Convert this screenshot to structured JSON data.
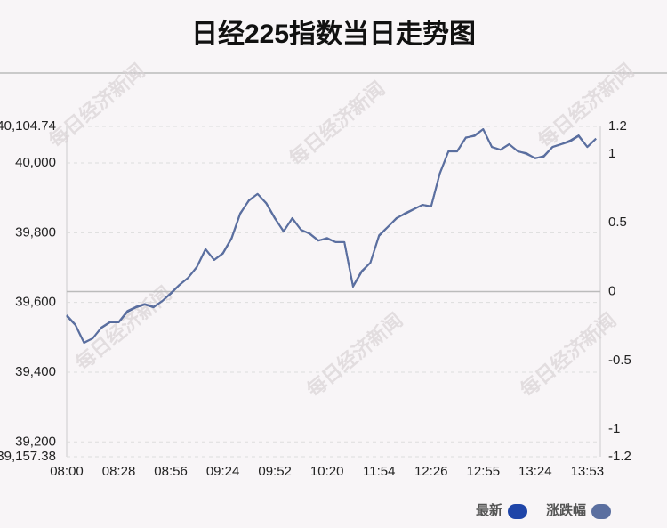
{
  "chart_data": {
    "type": "line",
    "title": "日经225指数当日走势图",
    "watermark": "每日经济新闻",
    "categories": [
      "08:00",
      null,
      null,
      null,
      null,
      null,
      "08:28",
      null,
      null,
      null,
      null,
      null,
      "08:56",
      null,
      null,
      null,
      null,
      null,
      "09:24",
      null,
      null,
      null,
      null,
      null,
      "09:52",
      null,
      null,
      null,
      null,
      null,
      "10:20",
      null,
      null,
      null,
      null,
      null,
      "11:54",
      null,
      null,
      null,
      null,
      null,
      "12:26",
      null,
      null,
      null,
      null,
      null,
      "12:55",
      null,
      null,
      null,
      null,
      null,
      "13:24",
      null,
      null,
      null,
      null,
      null,
      "13:53",
      null
    ],
    "series": [
      {
        "name": "最新",
        "color": "#1f45a8",
        "values": [
          39561,
          39535,
          39484,
          39497,
          39527,
          39543,
          39543,
          39573,
          39586,
          39594,
          39586,
          39604,
          39625,
          39650,
          39671,
          39701,
          39752,
          39722,
          39740,
          39783,
          39854,
          39893,
          39911,
          39885,
          39842,
          39803,
          39842,
          39808,
          39798,
          39778,
          39783,
          39773,
          39773,
          39645,
          39688,
          39714,
          39791,
          39816,
          39842,
          39854,
          39867,
          39880,
          39875,
          39969,
          40033,
          40033,
          40072,
          40079,
          40097,
          40046,
          40038,
          40054,
          40033,
          40028,
          40013,
          40020,
          40046,
          40054,
          40064,
          40079,
          40046,
          40070
        ]
      },
      {
        "name": "涨跌幅",
        "color": "#5b6fa0",
        "axis": "y2",
        "values": [
          -0.17,
          -0.24,
          -0.37,
          -0.34,
          -0.26,
          -0.22,
          -0.22,
          -0.14,
          -0.11,
          -0.09,
          -0.11,
          -0.07,
          -0.01,
          0.05,
          0.1,
          0.18,
          0.31,
          0.23,
          0.28,
          0.39,
          0.57,
          0.66,
          0.71,
          0.64,
          0.53,
          0.44,
          0.53,
          0.45,
          0.42,
          0.37,
          0.39,
          0.36,
          0.36,
          0.04,
          0.15,
          0.21,
          0.41,
          0.47,
          0.53,
          0.57,
          0.6,
          0.63,
          0.62,
          0.86,
          1.02,
          1.02,
          1.12,
          1.13,
          1.18,
          1.05,
          1.03,
          1.07,
          1.02,
          1.0,
          0.97,
          0.98,
          1.05,
          1.07,
          1.09,
          1.13,
          1.05,
          1.11
        ]
      }
    ],
    "ylim": [
      39157.38,
      40104.74
    ],
    "yticks": [
      {
        "value": 39157.38,
        "label": "39,157.38"
      },
      {
        "value": 39200,
        "label": "39,200"
      },
      {
        "value": 39400,
        "label": "39,400"
      },
      {
        "value": 39600,
        "label": "39,600"
      },
      {
        "value": 39800,
        "label": "39,800"
      },
      {
        "value": 40000,
        "label": "40,000"
      },
      {
        "value": 40104.74,
        "label": "40,104.74"
      }
    ],
    "y2lim": [
      -1.2,
      1.2
    ],
    "y2ticks": [
      -1.2,
      -1,
      -0.5,
      0,
      0.5,
      1,
      1.2
    ],
    "grid": true
  }
}
